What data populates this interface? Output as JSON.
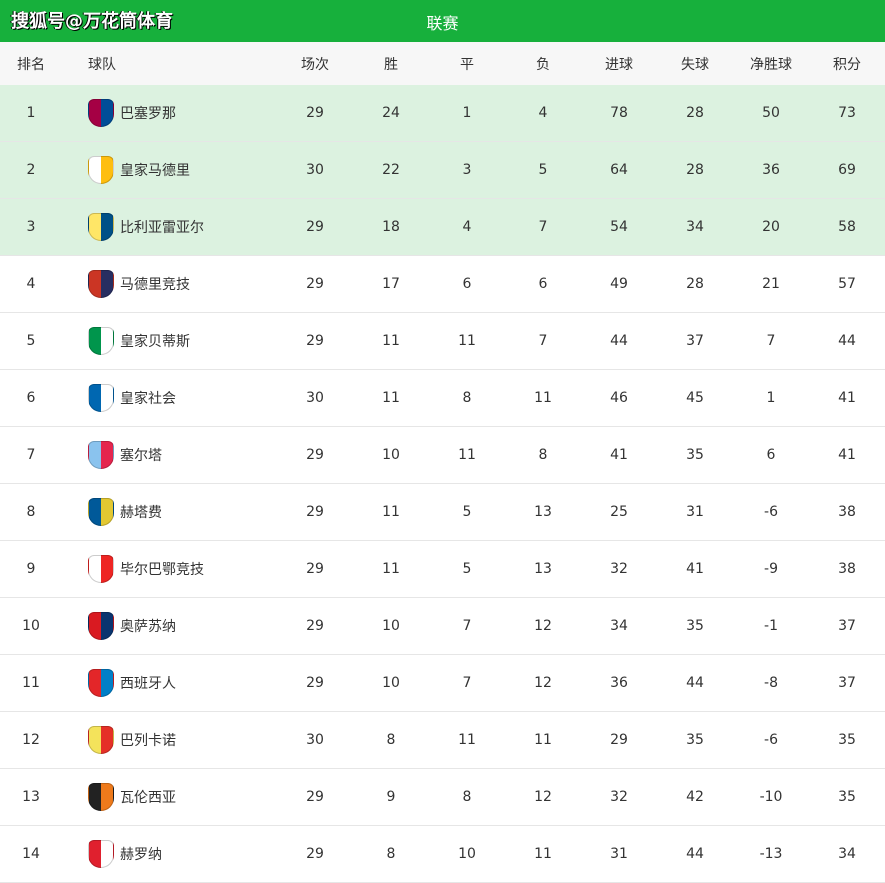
{
  "header": {
    "brand": "搜狐号@万花筒体育",
    "title": "联赛"
  },
  "columns": {
    "rank": "排名",
    "team": "球队",
    "played": "场次",
    "won": "胜",
    "drawn": "平",
    "lost": "负",
    "gf": "进球",
    "ga": "失球",
    "gd": "净胜球",
    "pts": "积分"
  },
  "highlight_color": "#dcf2e0",
  "rows": [
    {
      "rank": "1",
      "team": "巴塞罗那",
      "logo": [
        "#a50044",
        "#004d98"
      ],
      "played": "29",
      "won": "24",
      "drawn": "1",
      "lost": "4",
      "gf": "78",
      "ga": "28",
      "gd": "50",
      "pts": "73",
      "highlight": true
    },
    {
      "rank": "2",
      "team": "皇家马德里",
      "logo": [
        "#ffffff",
        "#febe10"
      ],
      "played": "30",
      "won": "22",
      "drawn": "3",
      "lost": "5",
      "gf": "64",
      "ga": "28",
      "gd": "36",
      "pts": "69",
      "highlight": true
    },
    {
      "rank": "3",
      "team": "比利亚雷亚尔",
      "logo": [
        "#ffe667",
        "#005187"
      ],
      "played": "29",
      "won": "18",
      "drawn": "4",
      "lost": "7",
      "gf": "54",
      "ga": "34",
      "gd": "20",
      "pts": "58",
      "highlight": true
    },
    {
      "rank": "4",
      "team": "马德里竞技",
      "logo": [
        "#cb3524",
        "#272e61"
      ],
      "played": "29",
      "won": "17",
      "drawn": "6",
      "lost": "6",
      "gf": "49",
      "ga": "28",
      "gd": "21",
      "pts": "57"
    },
    {
      "rank": "5",
      "team": "皇家贝蒂斯",
      "logo": [
        "#00954c",
        "#ffffff"
      ],
      "played": "29",
      "won": "11",
      "drawn": "11",
      "lost": "7",
      "gf": "44",
      "ga": "37",
      "gd": "7",
      "pts": "44"
    },
    {
      "rank": "6",
      "team": "皇家社会",
      "logo": [
        "#0067b1",
        "#ffffff"
      ],
      "played": "30",
      "won": "11",
      "drawn": "8",
      "lost": "11",
      "gf": "46",
      "ga": "45",
      "gd": "1",
      "pts": "41"
    },
    {
      "rank": "7",
      "team": "塞尔塔",
      "logo": [
        "#8ac3ee",
        "#e5254e"
      ],
      "played": "29",
      "won": "10",
      "drawn": "11",
      "lost": "8",
      "gf": "41",
      "ga": "35",
      "gd": "6",
      "pts": "41"
    },
    {
      "rank": "8",
      "team": "赫塔费",
      "logo": [
        "#005999",
        "#e3c832"
      ],
      "played": "29",
      "won": "11",
      "drawn": "5",
      "lost": "13",
      "gf": "25",
      "ga": "31",
      "gd": "-6",
      "pts": "38"
    },
    {
      "rank": "9",
      "team": "毕尔巴鄂竞技",
      "logo": [
        "#ffffff",
        "#ee2523"
      ],
      "played": "29",
      "won": "11",
      "drawn": "5",
      "lost": "13",
      "gf": "32",
      "ga": "41",
      "gd": "-9",
      "pts": "38"
    },
    {
      "rank": "10",
      "team": "奥萨苏纳",
      "logo": [
        "#d91a21",
        "#0a346f"
      ],
      "played": "29",
      "won": "10",
      "drawn": "7",
      "lost": "12",
      "gf": "34",
      "ga": "35",
      "gd": "-1",
      "pts": "37"
    },
    {
      "rank": "11",
      "team": "西班牙人",
      "logo": [
        "#e32629",
        "#007fc8"
      ],
      "played": "29",
      "won": "10",
      "drawn": "7",
      "lost": "12",
      "gf": "36",
      "ga": "44",
      "gd": "-8",
      "pts": "37"
    },
    {
      "rank": "12",
      "team": "巴列卡诺",
      "logo": [
        "#f4e35b",
        "#e53027"
      ],
      "played": "30",
      "won": "8",
      "drawn": "11",
      "lost": "11",
      "gf": "29",
      "ga": "35",
      "gd": "-6",
      "pts": "35"
    },
    {
      "rank": "13",
      "team": "瓦伦西亚",
      "logo": [
        "#222222",
        "#ee7a1b"
      ],
      "played": "29",
      "won": "9",
      "drawn": "8",
      "lost": "12",
      "gf": "32",
      "ga": "42",
      "gd": "-10",
      "pts": "35"
    },
    {
      "rank": "14",
      "team": "赫罗纳",
      "logo": [
        "#e0202e",
        "#ffffff"
      ],
      "played": "29",
      "won": "8",
      "drawn": "10",
      "lost": "11",
      "gf": "31",
      "ga": "44",
      "gd": "-13",
      "pts": "34"
    }
  ]
}
